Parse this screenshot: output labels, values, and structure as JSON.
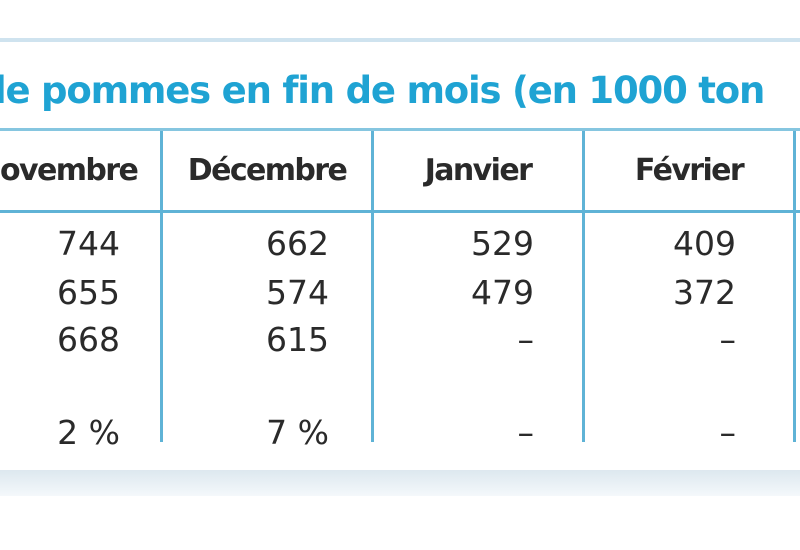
{
  "title": "le pommes en fin de mois (en 1000 ton",
  "columns": [
    "ovembre",
    "Décembre",
    "Janvier",
    "Février"
  ],
  "rows": [
    [
      "744",
      "662",
      "529",
      "409"
    ],
    [
      "655",
      "574",
      "479",
      "372"
    ],
    [
      "668",
      "615",
      "–",
      "–"
    ],
    [
      "2 %",
      "7 %",
      "–",
      "–"
    ]
  ],
  "colors": {
    "title": "#1fa3d3",
    "rule": "#5fb3d6",
    "text": "#2a2a2a"
  }
}
